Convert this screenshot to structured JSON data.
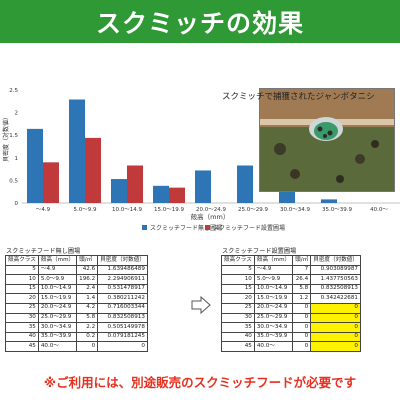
{
  "banner": {
    "title": "スクミッチの効果"
  },
  "photo": {
    "caption": "スクミッチで捕獲されたジャンボタニシ"
  },
  "chart_data": {
    "type": "bar",
    "categories": [
      "～4.9",
      "5.0～9.9",
      "10.0～14.9",
      "15.0～19.9",
      "20.0～24.9",
      "25.0～29.9",
      "30.0～34.9",
      "35.0～39.9",
      "40.0～"
    ],
    "series": [
      {
        "name": "スクミッチフード無し圃場",
        "color": "#2e75b6",
        "values": [
          1.64,
          2.29,
          0.53,
          0.38,
          0.72,
          0.83,
          0.51,
          0.08,
          0
        ]
      },
      {
        "name": "スクミッチフード設置圃場",
        "color": "#c0393b",
        "values": [
          0.9,
          1.44,
          0.83,
          0.34,
          0,
          0,
          0,
          0,
          0
        ]
      }
    ],
    "ylabel": "貝密度（対数値）",
    "xlabel": "殻高（mm）",
    "ylim": [
      0,
      2.5
    ],
    "yticks": [
      "0",
      "0.5",
      "1",
      "1.5",
      "2",
      "2.5"
    ],
    "grid": false,
    "legend": "bottom"
  },
  "table_left": {
    "title": "スクミッチフード無し圃場",
    "headers": [
      "殻高クラス",
      "殻高（mm）",
      "頭/㎡",
      "貝密度（対数値）"
    ],
    "rows": [
      [
        "5",
        "～4.9",
        "42.6",
        "1.639486489"
      ],
      [
        "10",
        "5.0～9.9",
        "196.2",
        "2.294906911"
      ],
      [
        "15",
        "10.0～14.9",
        "2.4",
        "0.531478917"
      ],
      [
        "20",
        "15.0～19.9",
        "1.4",
        "0.380211242"
      ],
      [
        "25",
        "20.0～24.9",
        "4.2",
        "0.716003344"
      ],
      [
        "30",
        "25.0～29.9",
        "5.8",
        "0.832508913"
      ],
      [
        "35",
        "30.0～34.9",
        "2.2",
        "0.505149978"
      ],
      [
        "40",
        "35.0～39.9",
        "0.2",
        "0.079181245"
      ],
      [
        "45",
        "40.0～",
        "0",
        "0"
      ]
    ]
  },
  "table_right": {
    "title": "スクミッチフード設置圃場",
    "headers": [
      "殻高クラス",
      "殻高（mm）",
      "頭/㎡",
      "貝密度（対数値）"
    ],
    "rows": [
      [
        "5",
        "～4.9",
        "7",
        "0.903089987"
      ],
      [
        "10",
        "5.0～9.9",
        "26.4",
        "1.437750563"
      ],
      [
        "15",
        "10.0～14.9",
        "5.8",
        "0.832508913"
      ],
      [
        "20",
        "15.0～19.9",
        "1.2",
        "0.342422681"
      ],
      [
        "25",
        "20.0～24.9",
        "0",
        "0"
      ],
      [
        "30",
        "25.0～29.9",
        "0",
        "0"
      ],
      [
        "35",
        "30.0～34.9",
        "0",
        "0"
      ],
      [
        "40",
        "35.0～39.9",
        "0",
        "0"
      ],
      [
        "45",
        "40.0～",
        "0",
        "0"
      ]
    ]
  },
  "note": "※ご利用には、別途販売のスクミッチフードが必要です"
}
